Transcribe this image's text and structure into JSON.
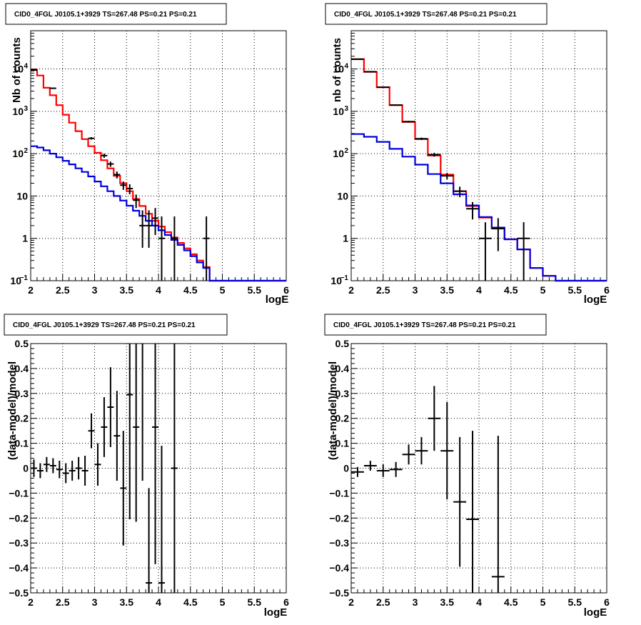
{
  "chart_data": [
    {
      "panel": "counts-left",
      "type": "line",
      "title": "CID0_4FGL J0105.1+3929 TS=267.48 PS=0.21 PS=0.21",
      "xlabel": "logE",
      "ylabel": "Nb of counts",
      "xlim": [
        2,
        6
      ],
      "ylim": [
        0.1,
        80000
      ],
      "yscale": "log",
      "grid": true,
      "xticks": [
        "2",
        "2.5",
        "3",
        "3.5",
        "4",
        "4.5",
        "5",
        "5.5",
        "6"
      ],
      "yticks": [
        {
          "value": 0.1,
          "label": "10",
          "exp": "−1"
        },
        {
          "value": 1,
          "label": "1",
          "exp": ""
        },
        {
          "value": 10,
          "label": "10",
          "exp": ""
        },
        {
          "value": 100,
          "label": "10",
          "exp": "2"
        },
        {
          "value": 1000,
          "label": "10",
          "exp": "3"
        },
        {
          "value": 10000,
          "label": "10",
          "exp": "4"
        }
      ],
      "bin_edges": [
        2.0,
        2.1,
        2.2,
        2.3,
        2.4,
        2.5,
        2.6,
        2.7,
        2.8,
        2.9,
        3.0,
        3.1,
        3.2,
        3.3,
        3.4,
        3.5,
        3.6,
        3.7,
        3.8,
        3.9,
        4.0,
        4.1,
        4.2,
        4.3,
        4.4,
        4.5,
        4.6,
        4.7,
        4.8,
        4.9,
        5.0,
        5.1,
        5.2,
        5.3,
        5.4,
        5.5,
        5.6,
        5.7,
        5.8,
        5.9,
        6.0
      ],
      "series": [
        {
          "color": "#ff0000",
          "kind": "hist",
          "values": [
            9500,
            7000,
            3600,
            2400,
            1400,
            830,
            540,
            340,
            220,
            150,
            105,
            70,
            45,
            30,
            20,
            13,
            8.5,
            5.8,
            3.8,
            2.6,
            1.9,
            1.4,
            1.05,
            0.78,
            0.58,
            0.42,
            0.3,
            0.21,
            0.1,
            0.1,
            0.1,
            0.1,
            0.1,
            0.1,
            0.1,
            0.1,
            0.1,
            0.1,
            0.1,
            0.1
          ]
        },
        {
          "color": "#0000dd",
          "kind": "hist",
          "values": [
            150,
            140,
            120,
            100,
            82,
            68,
            56,
            45,
            37,
            29,
            22,
            17,
            13,
            10,
            7.8,
            5.9,
            4.5,
            3.4,
            2.6,
            2.0,
            1.55,
            1.2,
            0.92,
            0.7,
            0.52,
            0.38,
            0.27,
            0.2,
            0.1,
            0.1,
            0.1,
            0.1,
            0.1,
            0.1,
            0.1,
            0.1,
            0.1,
            0.1,
            0.1,
            0.1
          ]
        },
        {
          "color": "#000000",
          "kind": "points",
          "x": [
            2.05,
            2.35,
            2.95,
            3.15,
            3.25,
            3.35,
            3.45,
            3.55,
            3.65,
            3.75,
            3.85,
            3.95,
            4.05,
            4.25,
            4.75
          ],
          "y": [
            9400,
            3500,
            230,
            90,
            57,
            32,
            18,
            15,
            8,
            2,
            2,
            3,
            1,
            1,
            1
          ],
          "ylo": [
            9200,
            3400,
            215,
            80,
            49,
            26,
            14,
            11,
            5.2,
            0.6,
            0.6,
            1.2,
            0.1,
            0.1,
            0.1
          ],
          "yhi": [
            9600,
            3600,
            245,
            100,
            65,
            38,
            22,
            19,
            10.8,
            4.6,
            4.6,
            5.2,
            3.3,
            3.3,
            3.3
          ]
        }
      ]
    },
    {
      "panel": "counts-right",
      "type": "line",
      "title": "CID0_4FGL J0105.1+3929 TS=267.48 PS=0.21 PS=0.21",
      "xlabel": "logE",
      "ylabel": "nb of counts",
      "xlim": [
        2,
        6
      ],
      "ylim": [
        0.1,
        80000
      ],
      "yscale": "log",
      "grid": true,
      "xticks": [
        "2",
        "2.5",
        "3",
        "3.5",
        "4",
        "4.5",
        "5",
        "5.5",
        "6"
      ],
      "yticks": [
        {
          "value": 0.1,
          "label": "10",
          "exp": "−1"
        },
        {
          "value": 1,
          "label": "1",
          "exp": ""
        },
        {
          "value": 10,
          "label": "10",
          "exp": ""
        },
        {
          "value": 100,
          "label": "10",
          "exp": "2"
        },
        {
          "value": 1000,
          "label": "10",
          "exp": "3"
        },
        {
          "value": 10000,
          "label": "10",
          "exp": "4"
        }
      ],
      "bin_edges": [
        2.0,
        2.2,
        2.4,
        2.6,
        2.8,
        3.0,
        3.2,
        3.4,
        3.6,
        3.8,
        4.0,
        4.2,
        4.4,
        4.6,
        4.8,
        5.0,
        5.2,
        5.4,
        5.6,
        5.8,
        6.0
      ],
      "series": [
        {
          "color": "#ff0000",
          "kind": "hist",
          "values": [
            17000,
            8500,
            3700,
            1400,
            560,
            220,
            90,
            32,
            13,
            5.8,
            3.1,
            1.7,
            0.95,
            0.55,
            0.2,
            0.13,
            0.1,
            0.1,
            0.1,
            0.1
          ]
        },
        {
          "color": "#0000dd",
          "kind": "hist",
          "values": [
            290,
            250,
            190,
            130,
            85,
            55,
            33,
            20,
            11,
            6,
            3.2,
            1.8,
            0.95,
            0.55,
            0.2,
            0.13,
            0.1,
            0.1,
            0.1,
            0.1
          ]
        },
        {
          "color": "#000000",
          "kind": "points",
          "x": [
            2.1,
            2.3,
            2.5,
            2.7,
            2.9,
            3.1,
            3.3,
            3.5,
            3.7,
            3.9,
            4.1,
            4.3,
            4.7
          ],
          "y": [
            17000,
            8600,
            3700,
            1400,
            570,
            225,
            95,
            30,
            13,
            5,
            1,
            1.7,
            1
          ],
          "ylo": [
            16800,
            8500,
            3640,
            1360,
            546,
            210,
            85,
            25,
            9.4,
            2.8,
            0.1,
            0.5,
            0.1
          ],
          "yhi": [
            17200,
            8700,
            3760,
            1440,
            594,
            240,
            105,
            35,
            16.6,
            7.2,
            2.4,
            3.0,
            2.4
          ]
        }
      ]
    },
    {
      "panel": "residual-left",
      "type": "scatter",
      "title": "CID0_4FGL J0105.1+3929 TS=267.48 PS=0.21 PS=0.21",
      "xlabel": "logE",
      "ylabel": "(data-model)/model",
      "xlim": [
        2,
        6
      ],
      "ylim": [
        -0.5,
        0.5
      ],
      "grid": true,
      "xticks": [
        "2",
        "2.5",
        "3",
        "3.5",
        "4",
        "4.5",
        "5",
        "5.5",
        "6"
      ],
      "yticks": [
        "−0.5",
        "−0.4",
        "−0.3",
        "−0.2",
        "−0.1",
        "0",
        "0.1",
        "0.2",
        "0.3",
        "0.4",
        "0.5"
      ],
      "points": {
        "x": [
          2.05,
          2.15,
          2.25,
          2.35,
          2.45,
          2.55,
          2.65,
          2.75,
          2.85,
          2.95,
          3.05,
          3.15,
          3.25,
          3.35,
          3.45,
          3.55,
          3.65,
          3.75,
          3.85,
          3.95,
          4.05,
          4.25
        ],
        "y": [
          0.0,
          -0.01,
          0.015,
          0.01,
          -0.005,
          -0.02,
          -0.01,
          0.0,
          -0.01,
          0.15,
          0.015,
          0.165,
          0.245,
          0.13,
          -0.08,
          0.295,
          0.165,
          0.5,
          -0.46,
          0.165,
          -0.46,
          0.0
        ],
        "yerr": [
          0.035,
          0.03,
          0.03,
          0.03,
          0.035,
          0.04,
          0.04,
          0.045,
          0.06,
          0.07,
          0.085,
          0.12,
          0.16,
          0.18,
          0.23,
          0.5,
          0.38,
          0.55,
          0.38,
          0.55,
          0.55,
          0.55
        ]
      }
    },
    {
      "panel": "residual-right",
      "type": "scatter",
      "title": "CID0_4FGL J0105.1+3929 TS=267.48 PS=0.21 PS=0.21",
      "xlabel": "logE",
      "ylabel": "(data-model)/model",
      "xlim": [
        2,
        6
      ],
      "ylim": [
        -0.5,
        0.5
      ],
      "grid": true,
      "xticks": [
        "2",
        "2.5",
        "3",
        "3.5",
        "4",
        "4.5",
        "5",
        "5.5",
        "6"
      ],
      "yticks": [
        "−0.5",
        "−0.4",
        "−0.3",
        "−0.2",
        "−0.1",
        "0",
        "0.1",
        "0.2",
        "0.3",
        "0.4",
        "0.5"
      ],
      "points": {
        "x": [
          2.1,
          2.3,
          2.5,
          2.7,
          2.9,
          3.1,
          3.3,
          3.5,
          3.7,
          3.9,
          4.3
        ],
        "y": [
          -0.015,
          0.01,
          -0.01,
          -0.005,
          0.055,
          0.07,
          0.2,
          0.07,
          -0.135,
          -0.205,
          -0.435
        ],
        "yerr": [
          0.02,
          0.02,
          0.025,
          0.03,
          0.04,
          0.055,
          0.13,
          0.195,
          0.26,
          0.355,
          0.565
        ]
      }
    }
  ]
}
